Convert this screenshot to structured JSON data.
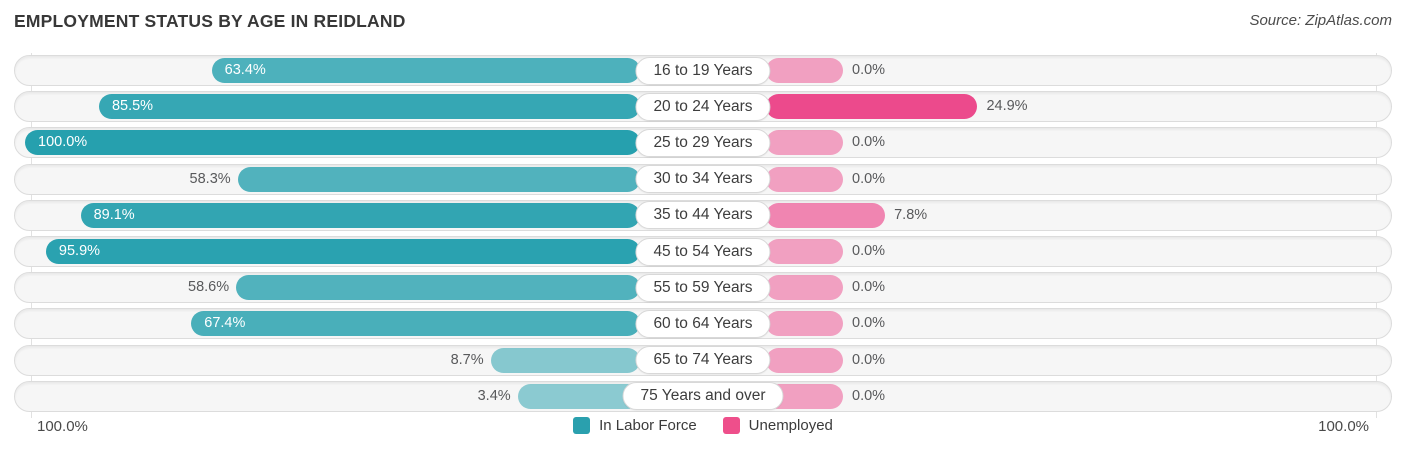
{
  "header": {
    "title": "EMPLOYMENT STATUS BY AGE IN REIDLAND",
    "source": "Source: ZipAtlas.com"
  },
  "axis": {
    "left_label": "100.0%",
    "right_label": "100.0%"
  },
  "legend": {
    "items": [
      {
        "label": "In Labor Force",
        "color": "#2aa0ae"
      },
      {
        "label": "Unemployed",
        "color": "#ee4f8b"
      }
    ]
  },
  "chart_data": {
    "type": "bar",
    "orientation": "diverging-horizontal",
    "title": "EMPLOYMENT STATUS BY AGE IN REIDLAND",
    "categories": [
      "16 to 19 Years",
      "20 to 24 Years",
      "25 to 29 Years",
      "30 to 34 Years",
      "35 to 44 Years",
      "45 to 54 Years",
      "55 to 59 Years",
      "60 to 64 Years",
      "65 to 74 Years",
      "75 Years and over"
    ],
    "series": [
      {
        "name": "In Labor Force",
        "side": "left",
        "color": "#26a0ae",
        "values": [
          63.4,
          85.5,
          100.0,
          58.3,
          89.1,
          95.9,
          58.6,
          67.4,
          8.7,
          3.4
        ]
      },
      {
        "name": "Unemployed",
        "side": "right",
        "color": "#ec498c",
        "values": [
          0.0,
          24.9,
          0.0,
          0.0,
          7.8,
          0.0,
          0.0,
          0.0,
          0.0,
          0.0
        ]
      }
    ],
    "value_suffix": "%",
    "axis_range_percent": [
      0,
      100
    ],
    "axis_end_labels": [
      "100.0%",
      "100.0%"
    ],
    "legend_position": "bottom",
    "gridlines": "outer-vertical-only"
  }
}
